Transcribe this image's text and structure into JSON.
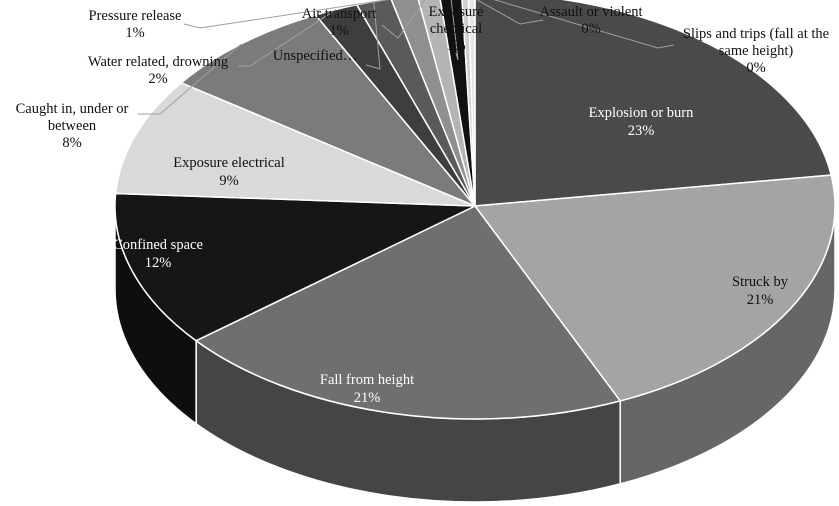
{
  "chart_data": {
    "type": "pie",
    "style": "3d-pie",
    "grayscale": true,
    "legend": "none",
    "slices": [
      {
        "label": "Explosion or burn",
        "pct_text": "23%",
        "value": 23,
        "color": "#4a4a4a"
      },
      {
        "label": "Struck by",
        "pct_text": "21%",
        "value": 21,
        "color": "#a4a4a4"
      },
      {
        "label": "Fall from height",
        "pct_text": "21%",
        "value": 21,
        "color": "#6f6f6f"
      },
      {
        "label": "Confined space",
        "pct_text": "12%",
        "value": 12,
        "color": "#161616"
      },
      {
        "label": "Exposure  electrical",
        "pct_text": "9%",
        "value": 9,
        "color": "#d9d9d9"
      },
      {
        "label": "Caught in, under or between",
        "pct_text": "8%",
        "value": 8,
        "color": "#7b7b7b"
      },
      {
        "label": "Water related, drowning",
        "pct_text": "2%",
        "value": 2,
        "color": "#3e3e3e"
      },
      {
        "label": "Unspecified…",
        "pct_text": "",
        "value": 1.6,
        "color": "#5a5a5a"
      },
      {
        "label": "Pressure release",
        "pct_text": "1%",
        "value": 1.2,
        "color": "#8f8f8f"
      },
      {
        "label": "Air transport",
        "pct_text": "1%",
        "value": 1.0,
        "color": "#b4b4b4"
      },
      {
        "label": "Exposure chemical",
        "pct_text": "1%",
        "value": 1.0,
        "color": "#111111"
      },
      {
        "label": "Assault or violent",
        "pct_text": "0%",
        "value": 0.3,
        "color": "#cfcfcf"
      },
      {
        "label": "Slips and trips (fall at the same height)",
        "pct_text": "0%",
        "value": 0.3,
        "color": "#e6e6e6"
      }
    ]
  }
}
